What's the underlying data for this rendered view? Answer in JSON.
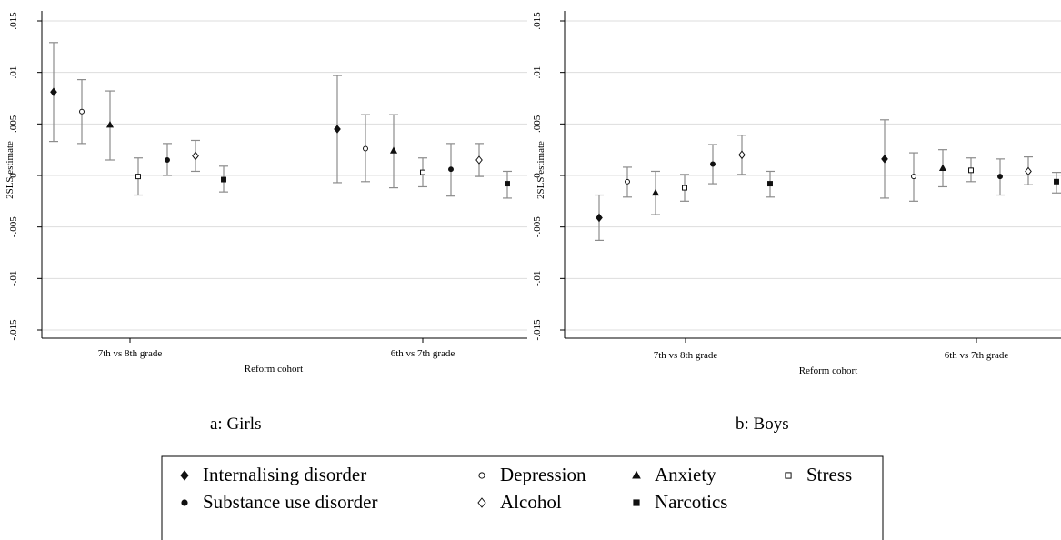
{
  "chart_data": [
    {
      "type": "scatter",
      "caption": "a: Girls",
      "ylabel": "2SLS estimate",
      "xlabel": "Reform cohort",
      "ylim": [
        -0.016,
        0.016
      ],
      "yticks": [
        0.015,
        0.01,
        0.005,
        0,
        -0.005,
        -0.01,
        -0.015
      ],
      "ytick_labels": [
        ".015",
        ".01",
        ".005",
        "0",
        "-.005",
        "-.01",
        "-.015"
      ],
      "grid": true,
      "categories": [
        "7th vs 8th grade",
        "6th vs 7th grade"
      ],
      "series": [
        {
          "name": "Internalising disorder",
          "points": [
            [
              0.0081,
              0.0033,
              0.0129
            ],
            [
              0.0045,
              -0.0007,
              0.0097
            ]
          ]
        },
        {
          "name": "Depression",
          "points": [
            [
              0.0062,
              0.0031,
              0.0093
            ],
            [
              0.0026,
              -0.0006,
              0.0059
            ]
          ]
        },
        {
          "name": "Anxiety",
          "points": [
            [
              0.0049,
              0.0015,
              0.0082
            ],
            [
              0.0024,
              -0.0012,
              0.0059
            ]
          ]
        },
        {
          "name": "Stress",
          "points": [
            [
              -0.0001,
              -0.0019,
              0.0017
            ],
            [
              0.0003,
              -0.0011,
              0.0017
            ]
          ]
        },
        {
          "name": "Substance use disorder",
          "points": [
            [
              0.0015,
              0.0,
              0.0031
            ],
            [
              0.0006,
              -0.002,
              0.0031
            ]
          ]
        },
        {
          "name": "Alcohol",
          "points": [
            [
              0.0019,
              0.0004,
              0.0034
            ],
            [
              0.0015,
              -0.0001,
              0.0031
            ]
          ]
        },
        {
          "name": "Narcotics",
          "points": [
            [
              -0.0004,
              -0.0016,
              0.0009
            ],
            [
              -0.0008,
              -0.0022,
              0.0004
            ]
          ]
        }
      ]
    },
    {
      "type": "scatter",
      "caption": "b: Boys",
      "ylabel": "2SLS estimate",
      "xlabel": "Reform cohort",
      "ylim": [
        -0.016,
        0.016
      ],
      "yticks": [
        0.015,
        0.01,
        0.005,
        0,
        -0.005,
        -0.01,
        -0.015
      ],
      "ytick_labels": [
        ".015",
        ".01",
        ".005",
        "0",
        "-.005",
        "-.01",
        "-.015"
      ],
      "grid": true,
      "categories": [
        "7th vs 8th grade",
        "6th vs 7th grade"
      ],
      "series": [
        {
          "name": "Internalising disorder",
          "points": [
            [
              -0.0041,
              -0.0063,
              -0.0019
            ],
            [
              0.0016,
              -0.0022,
              0.0054
            ]
          ]
        },
        {
          "name": "Depression",
          "points": [
            [
              -0.0006,
              -0.0021,
              0.0008
            ],
            [
              -0.0001,
              -0.0025,
              0.0022
            ]
          ]
        },
        {
          "name": "Anxiety",
          "points": [
            [
              -0.0017,
              -0.0038,
              0.0004
            ],
            [
              0.0007,
              -0.0011,
              0.0025
            ]
          ]
        },
        {
          "name": "Stress",
          "points": [
            [
              -0.0012,
              -0.0025,
              0.0001
            ],
            [
              0.0005,
              -0.0006,
              0.0017
            ]
          ]
        },
        {
          "name": "Substance use disorder",
          "points": [
            [
              0.0011,
              -0.0008,
              0.003
            ],
            [
              -0.0001,
              -0.0019,
              0.0016
            ]
          ]
        },
        {
          "name": "Alcohol",
          "points": [
            [
              0.002,
              0.0001,
              0.0039
            ],
            [
              0.0004,
              -0.0009,
              0.0018
            ]
          ]
        },
        {
          "name": "Narcotics",
          "points": [
            [
              -0.0008,
              -0.0021,
              0.0004
            ],
            [
              -0.0006,
              -0.0017,
              0.0003
            ]
          ]
        }
      ]
    }
  ],
  "legend": {
    "entries": [
      {
        "label": "Internalising disorder",
        "marker": "diamond-filled"
      },
      {
        "label": "Depression",
        "marker": "circle-open"
      },
      {
        "label": "Anxiety",
        "marker": "triangle-filled"
      },
      {
        "label": "Stress",
        "marker": "square-open"
      },
      {
        "label": "Substance use disorder",
        "marker": "circle-filled"
      },
      {
        "label": "Alcohol",
        "marker": "diamond-open"
      },
      {
        "label": "Narcotics",
        "marker": "square-filled"
      }
    ]
  },
  "colors": {
    "marker": "#111111",
    "errorbar": "#8c8c8c",
    "grid": "#dddddd",
    "axis": "#000000"
  }
}
